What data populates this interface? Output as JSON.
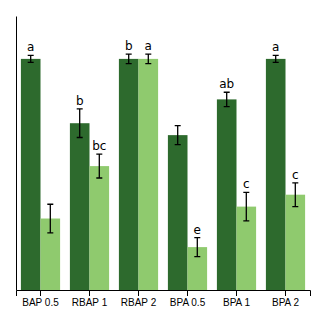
{
  "chart_data": {
    "type": "bar",
    "categories": [
      "BAP 0.5",
      "RBAP 1",
      "RBAP 2",
      "BPA 0.5",
      "BPA 1",
      "BPA 2"
    ],
    "series": [
      {
        "color": "#2d6a2d",
        "values": [
          97,
          70,
          97,
          65,
          80,
          97
        ],
        "errors": [
          1.5,
          6,
          2,
          4,
          3,
          1.5
        ],
        "labels": [
          "a",
          "b",
          "b",
          null,
          "ab",
          "a"
        ]
      },
      {
        "color": "#8fca6e",
        "values": [
          30,
          52,
          97,
          18,
          35,
          40
        ],
        "errors": [
          6,
          5,
          2,
          4,
          6,
          5
        ],
        "labels": [
          null,
          "bc",
          "a",
          "e",
          "c",
          "c"
        ]
      }
    ],
    "ylim": [
      0,
      115
    ],
    "grid": false,
    "tick_labels": "x"
  }
}
